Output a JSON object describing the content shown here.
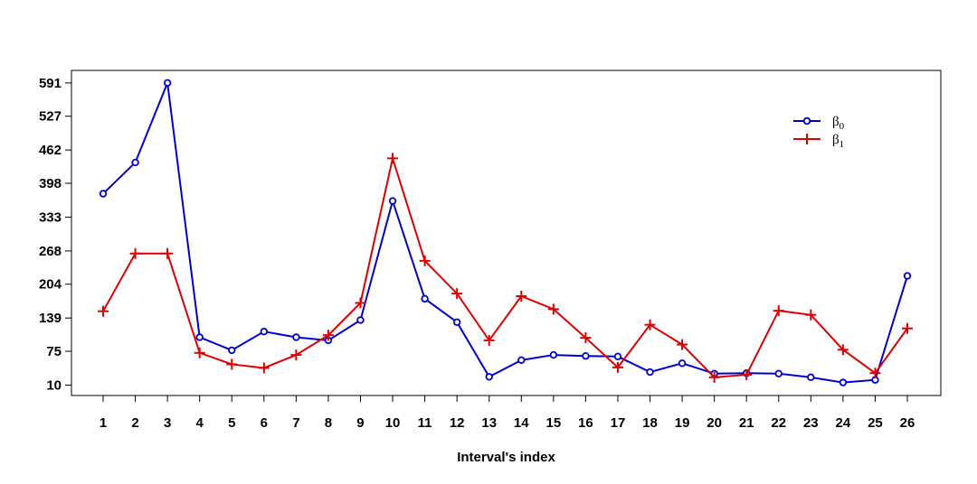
{
  "chart_data": {
    "type": "line",
    "title": "",
    "xlabel": "Interval's index",
    "ylabel": "",
    "categories": [
      "1",
      "2",
      "3",
      "4",
      "5",
      "6",
      "7",
      "8",
      "9",
      "10",
      "11",
      "12",
      "13",
      "14",
      "15",
      "16",
      "17",
      "18",
      "19",
      "20",
      "21",
      "22",
      "23",
      "24",
      "25",
      "26"
    ],
    "yticks": [
      10,
      75,
      139,
      204,
      268,
      333,
      398,
      462,
      527,
      591
    ],
    "ytick_labels": [
      "10",
      "75",
      "139",
      "204",
      "268",
      "333",
      "398",
      "462",
      "527",
      "591"
    ],
    "ylim": [
      -10,
      615
    ],
    "grid": false,
    "legend_position": "top-right",
    "series": [
      {
        "name_base": "β",
        "name_sub": "0",
        "color": "#0000cc",
        "marker": "circle",
        "values": [
          378,
          438,
          591,
          102,
          77,
          113,
          102,
          96,
          135,
          364,
          176,
          131,
          26,
          58,
          68,
          66,
          65,
          35,
          52,
          32,
          33,
          32,
          25,
          15,
          20,
          220
        ]
      },
      {
        "name_base": "β",
        "name_sub": "1",
        "color": "#dd0000",
        "marker": "plus",
        "values": [
          152,
          263,
          263,
          72,
          50,
          43,
          68,
          106,
          168,
          446,
          249,
          186,
          96,
          181,
          156,
          101,
          44,
          126,
          88,
          25,
          30,
          153,
          145,
          78,
          33,
          119
        ]
      }
    ]
  }
}
